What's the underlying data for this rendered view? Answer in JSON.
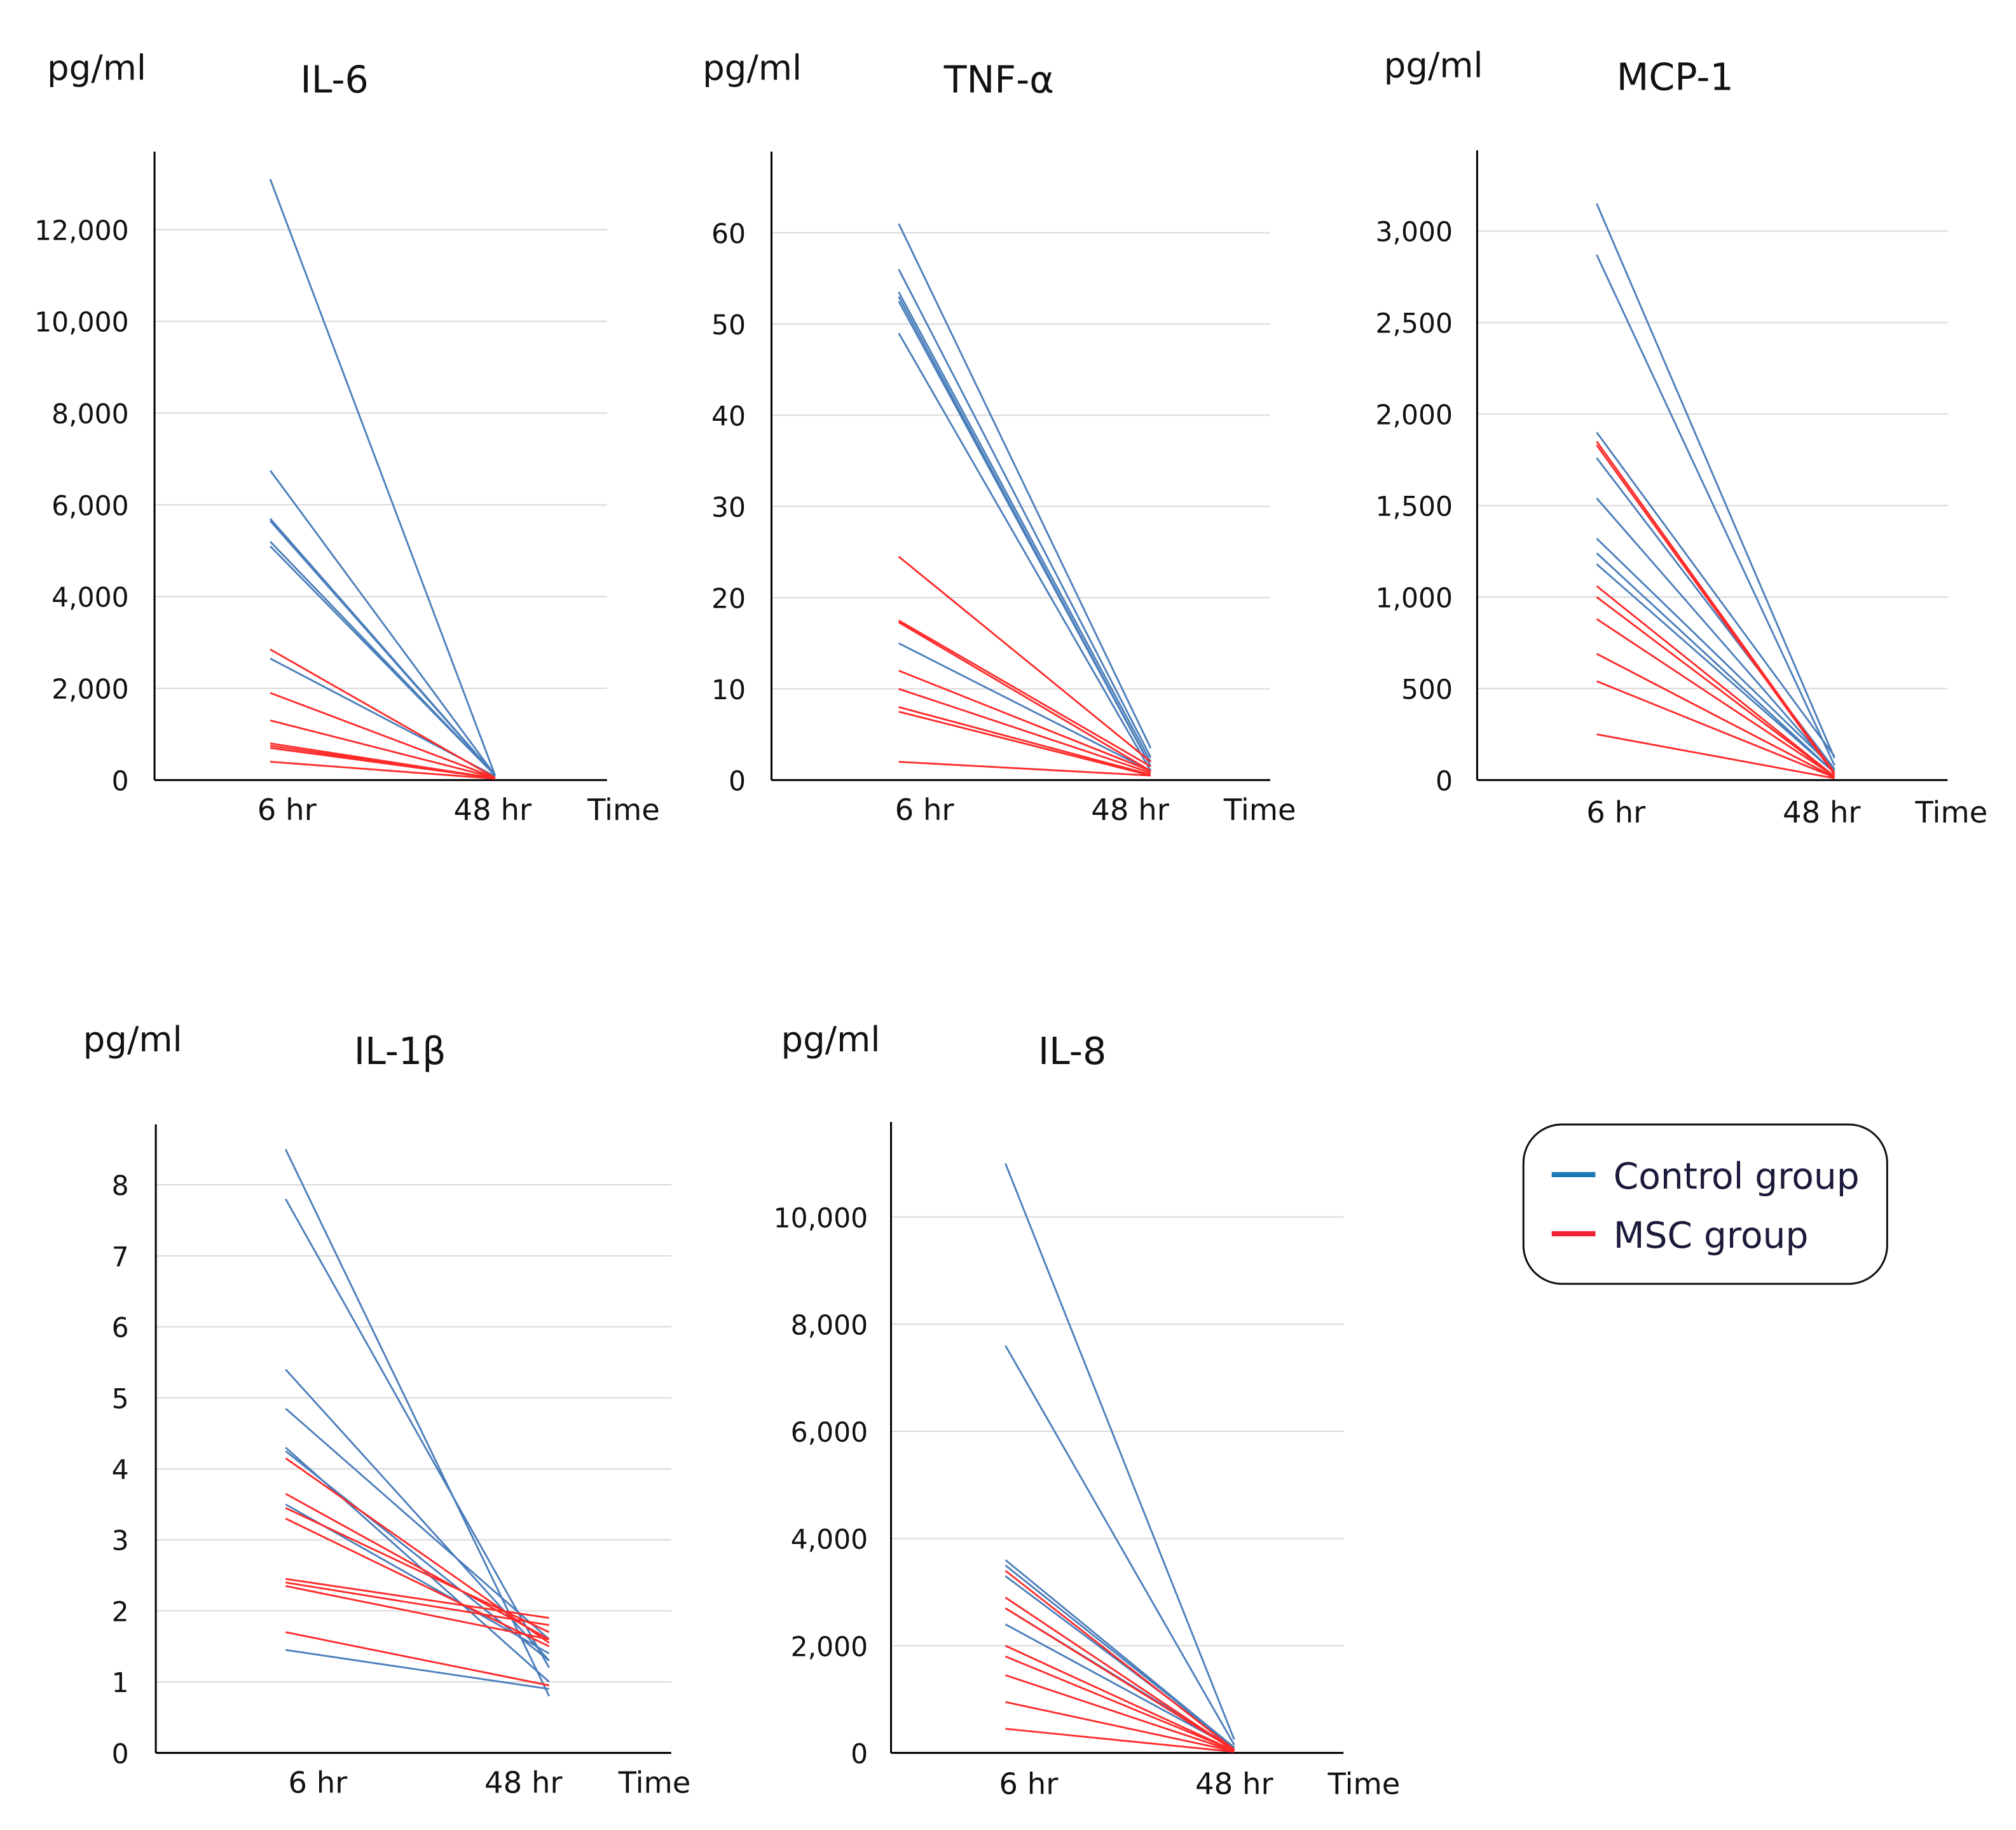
{
  "colors": {
    "control": "#4a7ebb",
    "msc": "#ff2a2a",
    "legend_control": "#1a7ab8",
    "legend_msc": "#ee2233",
    "grid": "#d9d9d9"
  },
  "legend": {
    "control_label": "Control group",
    "msc_label": "MSC group"
  },
  "chart_data": [
    {
      "type": "line",
      "title": "IL-6",
      "ylabel": "pg/ml",
      "xlabel": "Time",
      "categories": [
        "6 hr",
        "48 hr"
      ],
      "ylim": [
        0,
        13700
      ],
      "yticks": [
        0,
        2000,
        4000,
        6000,
        8000,
        10000,
        12000
      ],
      "ytick_labels": [
        "0",
        "2,000",
        "4,000",
        "6,000",
        "8,000",
        "10,000",
        "12,000"
      ],
      "series": [
        {
          "group": "control",
          "values": [
            [
              13100,
              100
            ],
            [
              6750,
              100
            ],
            [
              5700,
              100
            ],
            [
              5650,
              100
            ],
            [
              5200,
              100
            ],
            [
              5100,
              100
            ],
            [
              2650,
              80
            ]
          ]
        },
        {
          "group": "msc",
          "values": [
            [
              2850,
              50
            ],
            [
              1900,
              50
            ],
            [
              1300,
              50
            ],
            [
              800,
              40
            ],
            [
              750,
              40
            ],
            [
              700,
              40
            ],
            [
              400,
              30
            ]
          ]
        }
      ]
    },
    {
      "type": "line",
      "title": "TNF-α",
      "ylabel": "pg/ml",
      "xlabel": "Time",
      "categories": [
        "6 hr",
        "48 hr"
      ],
      "ylim": [
        0,
        68.9
      ],
      "yticks": [
        0,
        10,
        20,
        30,
        40,
        50,
        60
      ],
      "ytick_labels": [
        "0",
        "10",
        "20",
        "30",
        "40",
        "50",
        "60"
      ],
      "series": [
        {
          "group": "control",
          "values": [
            [
              61,
              3.5
            ],
            [
              56,
              2.5
            ],
            [
              53.5,
              2
            ],
            [
              53,
              1.5
            ],
            [
              52.5,
              1.5
            ],
            [
              49,
              1
            ],
            [
              15,
              1
            ]
          ]
        },
        {
          "group": "msc",
          "values": [
            [
              24.5,
              2
            ],
            [
              17.5,
              1.5
            ],
            [
              17.3,
              1
            ],
            [
              12,
              1
            ],
            [
              10,
              0.8
            ],
            [
              8,
              0.6
            ],
            [
              7.5,
              0.5
            ],
            [
              2,
              0.5
            ]
          ]
        }
      ]
    },
    {
      "type": "line",
      "title": "MCP-1",
      "ylabel": "pg/ml",
      "xlabel": "Time",
      "categories": [
        "6 hr",
        "48 hr"
      ],
      "ylim": [
        0,
        3441
      ],
      "yticks": [
        0,
        500,
        1000,
        1500,
        2000,
        2500,
        3000
      ],
      "ytick_labels": [
        "0",
        "500",
        "1,000",
        "1,500",
        "2,000",
        "2,500",
        "3,000"
      ],
      "series": [
        {
          "group": "control",
          "values": [
            [
              3150,
              120
            ],
            [
              2870,
              80
            ],
            [
              1900,
              130
            ],
            [
              1760,
              60
            ],
            [
              1540,
              50
            ],
            [
              1320,
              60
            ],
            [
              1240,
              40
            ],
            [
              1180,
              40
            ]
          ]
        },
        {
          "group": "msc",
          "values": [
            [
              1850,
              40
            ],
            [
              1830,
              30
            ],
            [
              1060,
              20
            ],
            [
              1000,
              20
            ],
            [
              880,
              20
            ],
            [
              690,
              15
            ],
            [
              540,
              15
            ],
            [
              250,
              10
            ]
          ]
        }
      ]
    },
    {
      "type": "line",
      "title": "IL-1β",
      "ylabel": "pg/ml",
      "xlabel": "Time",
      "categories": [
        "6 hr",
        "48 hr"
      ],
      "ylim": [
        0,
        8.85
      ],
      "yticks": [
        0,
        1,
        2,
        3,
        4,
        5,
        6,
        7,
        8
      ],
      "ytick_labels": [
        "0",
        "1",
        "2",
        "3",
        "4",
        "5",
        "6",
        "7",
        "8"
      ],
      "series": [
        {
          "group": "control",
          "values": [
            [
              8.5,
              0.8
            ],
            [
              7.8,
              1.2
            ],
            [
              5.4,
              1.3
            ],
            [
              4.85,
              1.6
            ],
            [
              4.3,
              1.0
            ],
            [
              4.25,
              1.3
            ],
            [
              3.5,
              1.4
            ],
            [
              1.45,
              0.9
            ]
          ]
        },
        {
          "group": "msc",
          "values": [
            [
              4.15,
              1.55
            ],
            [
              3.65,
              1.6
            ],
            [
              3.45,
              1.7
            ],
            [
              3.3,
              1.5
            ],
            [
              2.45,
              1.9
            ],
            [
              2.4,
              1.8
            ],
            [
              2.35,
              1.6
            ],
            [
              1.7,
              0.95
            ]
          ]
        }
      ]
    },
    {
      "type": "line",
      "title": "IL-8",
      "ylabel": "pg/ml",
      "xlabel": "Time",
      "categories": [
        "6 hr",
        "48 hr"
      ],
      "ylim": [
        0,
        11775
      ],
      "yticks": [
        0,
        2000,
        4000,
        6000,
        8000,
        10000
      ],
      "ytick_labels": [
        "0",
        "2,000",
        "4,000",
        "6,000",
        "8,000",
        "10,000"
      ],
      "series": [
        {
          "group": "control",
          "values": [
            [
              11000,
              250
            ],
            [
              7600,
              150
            ],
            [
              3600,
              100
            ],
            [
              3500,
              100
            ],
            [
              3300,
              100
            ],
            [
              2700,
              80
            ],
            [
              2400,
              80
            ]
          ]
        },
        {
          "group": "msc",
          "values": [
            [
              3400,
              60
            ],
            [
              2900,
              50
            ],
            [
              2700,
              50
            ],
            [
              2000,
              40
            ],
            [
              1800,
              40
            ],
            [
              1450,
              30
            ],
            [
              950,
              30
            ],
            [
              450,
              20
            ]
          ]
        }
      ]
    }
  ]
}
